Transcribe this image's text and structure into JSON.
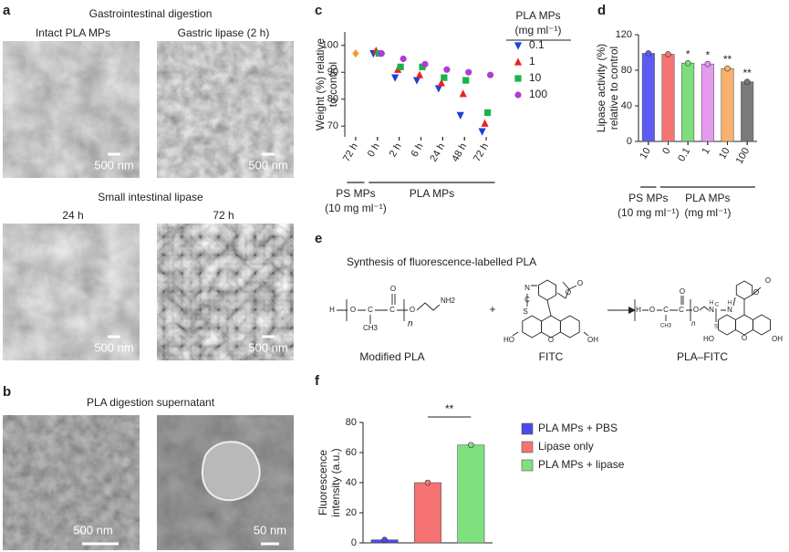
{
  "panels": {
    "a": {
      "label": "a",
      "title": "Gastrointestinal digestion",
      "top": [
        {
          "title": "Intact PLA MPs",
          "scale": "500 nm"
        },
        {
          "title": "Gastric lipase (2 h)",
          "scale": "500 nm"
        }
      ],
      "subtitle": "Small intestinal lipase",
      "bottom": [
        {
          "title": "24 h",
          "scale": "500 nm"
        },
        {
          "title": "72 h",
          "scale": "500 nm"
        }
      ]
    },
    "b": {
      "label": "b",
      "title": "PLA digestion supernatant",
      "scales": [
        "500 nm",
        "50 nm"
      ]
    },
    "e": {
      "label": "e",
      "title": "Synthesis of fluorescence-labelled PLA",
      "names": [
        "Modified PLA",
        "FITC",
        "PLA–FITC"
      ],
      "plus": "+",
      "atoms": {
        "modified_pla": [
          "H",
          "O",
          "C",
          "C",
          "CH3",
          "O",
          "n",
          "O",
          "NH2"
        ],
        "fitc": [
          "N",
          "C",
          "S",
          "O",
          "O",
          "HO",
          "OH",
          "O"
        ],
        "pla_fitc": [
          "H",
          "O",
          "C",
          "C",
          "CH3",
          "O",
          "n",
          "O",
          "H",
          "N",
          "C",
          "S",
          "N",
          "H",
          "O",
          "O",
          "HO",
          "OH",
          "O"
        ]
      }
    }
  },
  "chart_data": [
    {
      "label": "c",
      "type": "scatter",
      "ylabel": [
        "Weight (%) relative",
        "to control"
      ],
      "groups": [
        {
          "label": [
            "PS MPs",
            "(10 mg ml⁻¹)"
          ],
          "categories": [
            "72 h"
          ]
        },
        {
          "label": [
            "PLA MPs"
          ],
          "categories": [
            "0 h",
            "2 h",
            "6 h",
            "24 h",
            "48 h",
            "72 h"
          ]
        }
      ],
      "legend_title": [
        "PLA MPs",
        "(mg ml⁻¹)"
      ],
      "series": [
        {
          "name": "0.1",
          "color": "#1f3fd6",
          "marker": "triangle-down",
          "values": [
            null,
            97,
            88,
            87,
            84,
            74,
            68
          ]
        },
        {
          "name": "1",
          "color": "#e8231f",
          "marker": "triangle-up",
          "values": [
            null,
            98,
            91,
            89,
            86,
            82,
            71
          ]
        },
        {
          "name": "10",
          "color": "#19b34a",
          "marker": "square",
          "values": [
            null,
            97,
            92,
            92,
            88,
            87,
            75
          ]
        },
        {
          "name": "100",
          "color": "#b23ad9",
          "marker": "circle",
          "values": [
            null,
            97,
            95,
            93,
            91,
            90,
            89
          ]
        },
        {
          "color": "#f39a2c",
          "marker": "diamond",
          "values": [
            97,
            null,
            null,
            null,
            null,
            null,
            null
          ]
        }
      ],
      "ylim": [
        66,
        105
      ],
      "yticks": [
        70,
        80,
        90,
        100
      ]
    },
    {
      "label": "d",
      "type": "bar",
      "ylabel": [
        "Lipase activity (%)",
        "relative to control"
      ],
      "groups": [
        {
          "label": [
            "PS MPs",
            "(10 mg ml⁻¹)"
          ],
          "categories": [
            "10"
          ]
        },
        {
          "label": [
            "PLA MPs",
            "(mg ml⁻¹)"
          ],
          "categories": [
            "0",
            "0.1",
            "1",
            "10",
            "100"
          ]
        }
      ],
      "values": [
        99,
        98,
        88,
        87,
        82,
        67
      ],
      "colors": [
        "#5c5cf5",
        "#f77474",
        "#7ede7e",
        "#e59af0",
        "#f9b26b",
        "#7a7a7a"
      ],
      "annotations": [
        null,
        null,
        "*",
        "*",
        "**",
        "**"
      ],
      "ylim": [
        0,
        120
      ],
      "yticks": [
        0,
        40,
        80,
        120
      ]
    },
    {
      "label": "f",
      "type": "bar",
      "ylabel": [
        "Fluorescence",
        "intensity (a.u.)"
      ],
      "categories": [
        null,
        null,
        null
      ],
      "values": [
        2,
        40,
        65
      ],
      "colors": [
        "#4a4af0",
        "#f57373",
        "#7fe07f"
      ],
      "legend": [
        "PLA MPs + PBS",
        "Lipase only",
        "PLA MPs + lipase"
      ],
      "annotation": "**",
      "ylim": [
        0,
        80
      ],
      "yticks": [
        0,
        20,
        40,
        60,
        80
      ]
    }
  ]
}
